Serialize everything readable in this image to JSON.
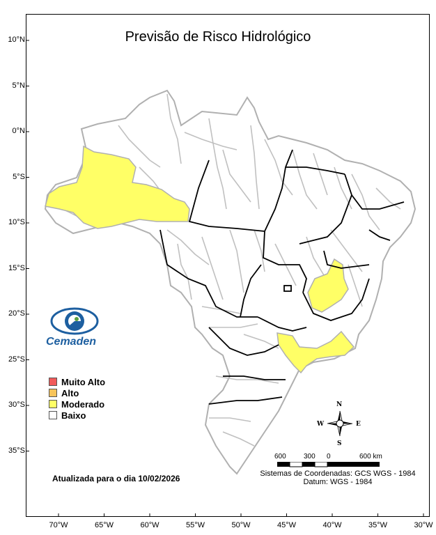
{
  "title": "Previsão de Risco Hidrológico",
  "lat_labels": [
    {
      "label": "10°N",
      "lat": 10
    },
    {
      "label": "5°N",
      "lat": 5
    },
    {
      "label": "0°N",
      "lat": 0
    },
    {
      "label": "5°S",
      "lat": -5
    },
    {
      "label": "10°S",
      "lat": -10
    },
    {
      "label": "15°S",
      "lat": -15
    },
    {
      "label": "20°S",
      "lat": -20
    },
    {
      "label": "25°S",
      "lat": -25
    },
    {
      "label": "30°S",
      "lat": -30
    },
    {
      "label": "35°S",
      "lat": -35
    }
  ],
  "lon_labels": [
    {
      "label": "70°W",
      "lon": -70
    },
    {
      "label": "65°W",
      "lon": -65
    },
    {
      "label": "60°W",
      "lon": -60
    },
    {
      "label": "55°W",
      "lon": -55
    },
    {
      "label": "50°W",
      "lon": -50
    },
    {
      "label": "45°W",
      "lon": -45
    },
    {
      "label": "40°W",
      "lon": -40
    },
    {
      "label": "35°W",
      "lon": -35
    },
    {
      "label": "30°W",
      "lon": -30
    }
  ],
  "legend": [
    {
      "label": "Muito Alto",
      "color": "#f05a5a"
    },
    {
      "label": "Alto",
      "color": "#f7c45a"
    },
    {
      "label": "Moderado",
      "color": "#ffff66"
    },
    {
      "label": "Baixo",
      "color": "#ffffff"
    }
  ],
  "updated_text": "Atualizada para o dia 10/02/2026",
  "logo": {
    "name": "Cemaden",
    "icon": "cemaden-eye-icon"
  },
  "compass": {
    "n": "N",
    "s": "S",
    "e": "E",
    "w": "W"
  },
  "scale_bar": {
    "labels": [
      "600",
      "300",
      "0",
      "600 km"
    ]
  },
  "coordinate_system": "Sistemas de Coordenadas: GCS WGS - 1984",
  "datum": "Datum: WGS - 1984",
  "colors": {
    "moderate_fill": "#ffff66",
    "boundary_gray": "#b0b0b0",
    "state_border": "#000000"
  }
}
